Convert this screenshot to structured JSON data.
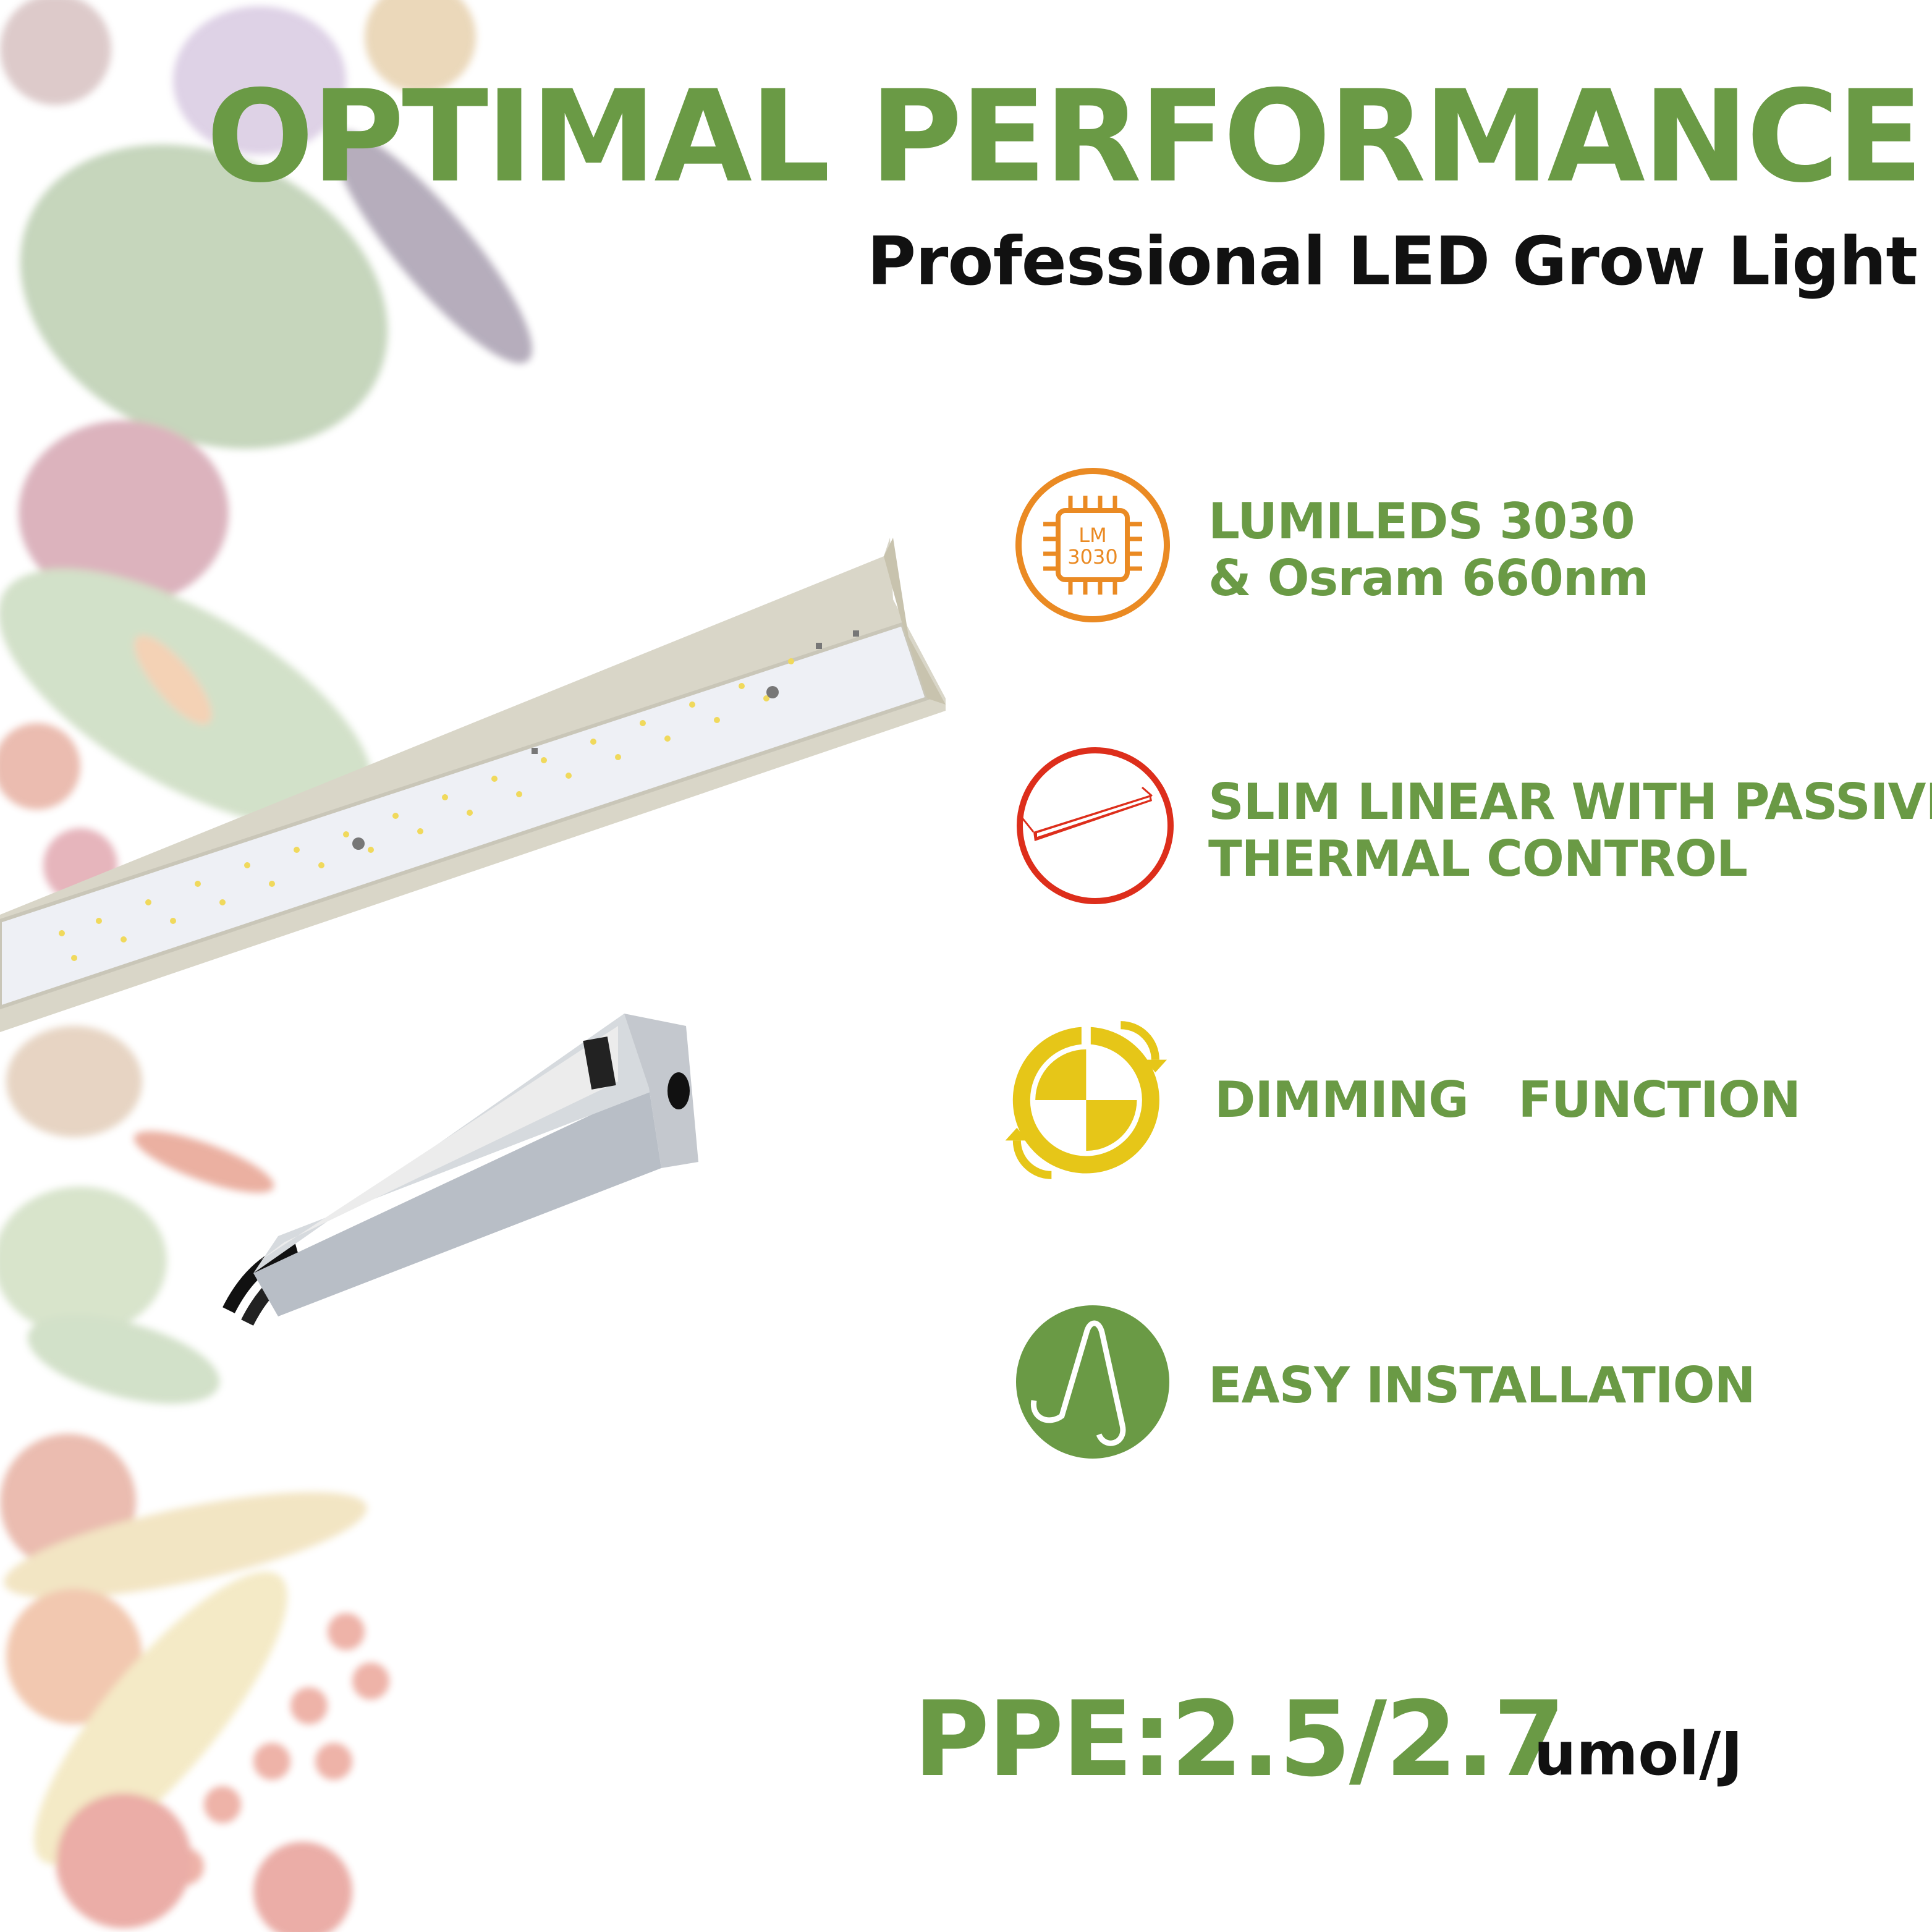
{
  "header": {
    "title": "OPTIMAL PERFORMANCE",
    "subtitle": "Professional LED Grow Light"
  },
  "features": [
    {
      "icon": "led-chip-icon",
      "lines": [
        "LUMILEDS 3030",
        "& Osram 660nm"
      ],
      "chip_label": [
        "LM",
        "3030"
      ],
      "color": "#ea8a23"
    },
    {
      "icon": "linear-bar-icon",
      "lines": [
        "SLIM LINEAR WITH PASSIVE",
        "THERMAL CONTROL"
      ],
      "color": "#dd2e1b"
    },
    {
      "icon": "dimming-icon",
      "lines": [
        "DIMMING   FUNCTION"
      ],
      "color": "#e6c618"
    },
    {
      "icon": "hanging-hook-icon",
      "lines": [
        "EASY INSTALLATION"
      ],
      "color": "#6a9a45"
    }
  ],
  "efficiency": {
    "value": "PPE:2.5/2.7",
    "unit": "umol/J"
  },
  "colors": {
    "accent_green": "#6a9a45",
    "text_dark": "#111111"
  }
}
